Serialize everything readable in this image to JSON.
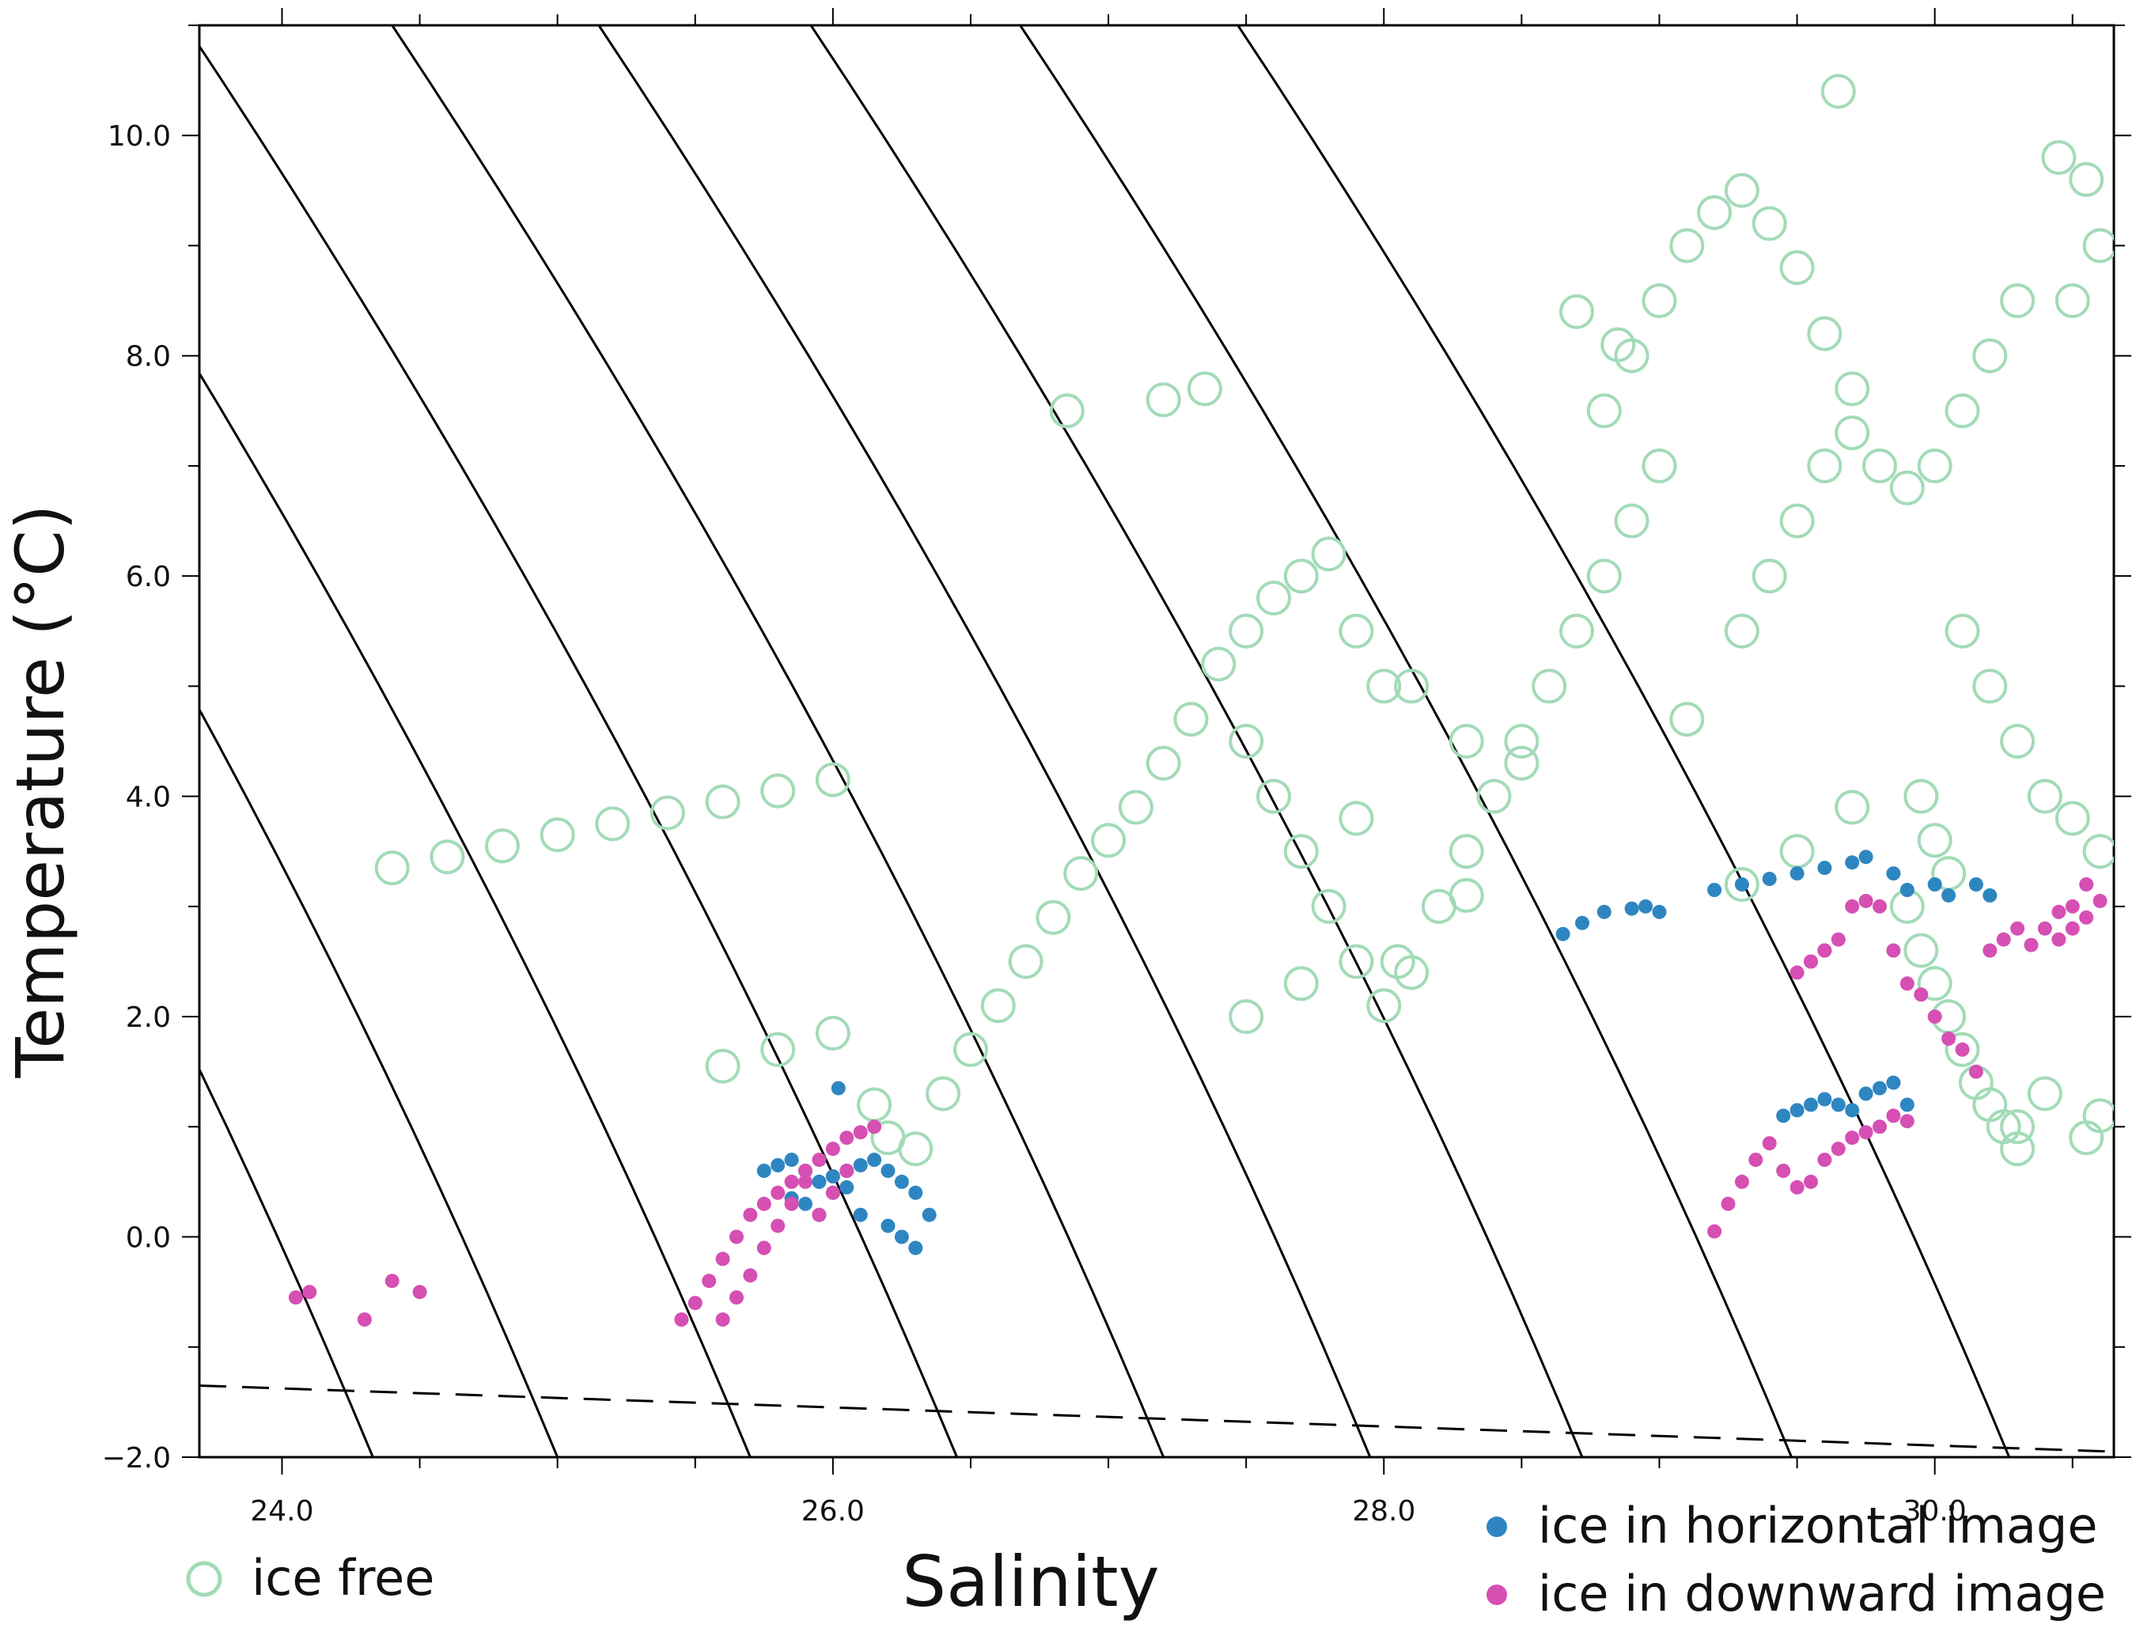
{
  "chart_data": {
    "type": "scatter",
    "title": "",
    "xlabel": "Salinity",
    "ylabel": "Temperature (°C)",
    "xlim": [
      23.7,
      30.65
    ],
    "ylim": [
      -2.0,
      11.0
    ],
    "x_ticks": [
      24.0,
      26.0,
      28.0,
      30.0
    ],
    "y_ticks": [
      -2.0,
      0.0,
      2.0,
      4.0,
      6.0,
      8.0,
      10.0
    ],
    "x_tick_labels": [
      "24.0",
      "26.0",
      "28.0",
      "30.0"
    ],
    "y_tick_labels": [
      "−2.0",
      "0.0",
      "2.0",
      "4.0",
      "6.0",
      "8.0",
      "10.0"
    ],
    "grid": false,
    "legend_position": "bottom",
    "isopycnal_lines": "solid",
    "freezing_line": "dashed",
    "colors": {
      "ice_free": "#a2dbb7",
      "horizontal": "#2e86c1",
      "downward": "#d64fb3",
      "isopycnal": "#000000"
    },
    "series": [
      {
        "name": "ice free",
        "marker": "open-circle",
        "color": "#a2dbb7",
        "x": [
          24.4,
          24.6,
          24.8,
          25.0,
          25.2,
          25.4,
          25.6,
          25.8,
          26.0,
          25.6,
          25.8,
          26.0,
          26.15,
          26.2,
          26.3,
          26.4,
          26.5,
          26.6,
          26.7,
          26.8,
          26.9,
          27.0,
          27.1,
          27.2,
          27.3,
          27.4,
          27.5,
          27.6,
          27.7,
          27.8,
          27.9,
          28.0,
          27.5,
          27.6,
          27.7,
          27.8,
          27.9,
          28.0,
          28.1,
          28.2,
          28.3,
          28.4,
          28.5,
          28.6,
          28.7,
          28.8,
          28.9,
          29.0,
          28.8,
          28.9,
          29.0,
          29.1,
          29.2,
          29.3,
          29.4,
          29.5,
          29.6,
          29.7,
          29.3,
          29.4,
          29.5,
          29.6,
          29.7,
          29.8,
          29.9,
          30.0,
          30.1,
          30.2,
          30.3,
          30.1,
          30.2,
          30.3,
          30.4,
          30.5,
          30.6,
          30.5,
          30.6,
          30.55,
          30.45,
          29.9,
          29.95,
          30.0,
          30.05,
          30.1,
          30.15,
          30.2,
          30.25,
          30.3,
          29.95,
          30.0,
          30.05,
          29.3,
          29.5,
          29.7,
          28.3,
          28.1,
          27.9,
          27.7,
          27.5,
          26.85,
          27.2,
          27.35,
          28.7,
          28.85,
          29.65,
          30.6,
          30.55,
          30.4,
          30.3,
          29.1,
          28.5,
          28.3,
          28.05
        ],
        "y": [
          3.35,
          3.45,
          3.55,
          3.65,
          3.75,
          3.85,
          3.95,
          4.05,
          4.15,
          1.55,
          1.7,
          1.85,
          1.2,
          0.9,
          0.8,
          1.3,
          1.7,
          2.1,
          2.5,
          2.9,
          3.3,
          3.6,
          3.9,
          4.3,
          4.7,
          5.2,
          5.5,
          5.8,
          6.0,
          6.2,
          5.5,
          5.0,
          4.5,
          4.0,
          3.5,
          3.0,
          2.5,
          2.1,
          2.4,
          3.0,
          3.5,
          4.0,
          4.5,
          5.0,
          5.5,
          6.0,
          6.5,
          7.0,
          7.5,
          8.0,
          8.5,
          9.0,
          9.3,
          9.5,
          9.2,
          8.8,
          8.2,
          7.7,
          5.5,
          6.0,
          6.5,
          7.0,
          7.3,
          7.0,
          6.8,
          7.0,
          7.5,
          8.0,
          8.5,
          5.5,
          5.0,
          4.5,
          4.0,
          3.8,
          3.5,
          8.5,
          9.0,
          9.6,
          9.8,
          3.0,
          2.6,
          2.3,
          2.0,
          1.7,
          1.4,
          1.2,
          1.0,
          0.8,
          4.0,
          3.6,
          3.3,
          3.2,
          3.5,
          3.9,
          4.5,
          5.0,
          3.8,
          2.3,
          2.0,
          7.5,
          7.6,
          7.7,
          8.4,
          8.1,
          10.4,
          1.1,
          0.9,
          1.3,
          1.0,
          4.7,
          4.3,
          3.1,
          2.5
        ]
      },
      {
        "name": "ice in horizontal  image",
        "marker": "filled-circle",
        "color": "#2e86c1",
        "x": [
          25.75,
          25.8,
          25.85,
          25.9,
          25.95,
          26.0,
          26.05,
          26.1,
          26.15,
          26.2,
          26.25,
          26.3,
          26.35,
          26.2,
          26.25,
          26.3,
          25.9,
          25.95,
          26.0,
          26.05,
          26.1,
          25.85,
          26.02,
          28.65,
          28.72,
          28.8,
          28.9,
          28.95,
          29.0,
          29.2,
          29.3,
          29.4,
          29.5,
          29.6,
          29.7,
          29.75,
          29.85,
          29.9,
          30.0,
          30.05,
          30.15,
          30.2,
          29.45,
          29.5,
          29.55,
          29.6,
          29.65,
          29.7,
          29.75,
          29.8,
          29.85,
          29.9
        ],
        "y": [
          0.6,
          0.65,
          0.7,
          0.6,
          0.5,
          0.55,
          0.6,
          0.65,
          0.7,
          0.6,
          0.5,
          0.4,
          0.2,
          0.1,
          0.0,
          -0.1,
          0.3,
          0.2,
          0.4,
          0.45,
          0.2,
          0.35,
          1.35,
          2.75,
          2.85,
          2.95,
          2.98,
          3.0,
          2.95,
          3.15,
          3.2,
          3.25,
          3.3,
          3.35,
          3.4,
          3.45,
          3.3,
          3.15,
          3.2,
          3.1,
          3.2,
          3.1,
          1.1,
          1.15,
          1.2,
          1.25,
          1.2,
          1.15,
          1.3,
          1.35,
          1.4,
          1.2
        ]
      },
      {
        "name": "ice in downward image",
        "marker": "filled-circle",
        "color": "#d64fb3",
        "x": [
          24.05,
          24.1,
          24.4,
          24.5,
          24.3,
          25.45,
          25.5,
          25.55,
          25.6,
          25.65,
          25.7,
          25.75,
          25.8,
          25.85,
          25.9,
          25.95,
          26.0,
          26.05,
          26.1,
          26.15,
          25.6,
          25.65,
          25.7,
          25.75,
          25.8,
          25.85,
          25.9,
          25.95,
          26.0,
          26.05,
          29.2,
          29.25,
          29.3,
          29.35,
          29.4,
          29.45,
          29.5,
          29.55,
          29.6,
          29.65,
          29.7,
          29.75,
          29.8,
          29.85,
          29.9,
          29.5,
          29.55,
          29.6,
          29.65,
          29.7,
          29.75,
          29.8,
          29.85,
          29.9,
          29.95,
          30.0,
          30.05,
          30.1,
          30.15,
          30.2,
          30.25,
          30.3,
          30.35,
          30.4,
          30.45,
          30.5,
          30.55,
          30.45,
          30.5,
          30.55,
          30.6,
          29.55,
          29.6
        ],
        "y": [
          -0.55,
          -0.5,
          -0.4,
          -0.5,
          -0.75,
          -0.75,
          -0.6,
          -0.4,
          -0.2,
          0.0,
          0.2,
          0.3,
          0.4,
          0.5,
          0.6,
          0.7,
          0.8,
          0.9,
          0.95,
          1.0,
          -0.75,
          -0.55,
          -0.35,
          -0.1,
          0.1,
          0.3,
          0.5,
          0.2,
          0.4,
          0.6,
          0.05,
          0.3,
          0.5,
          0.7,
          0.85,
          0.6,
          0.45,
          0.5,
          0.7,
          0.8,
          0.9,
          0.95,
          1.0,
          1.1,
          1.05,
          2.4,
          2.5,
          2.6,
          2.7,
          3.0,
          3.05,
          3.0,
          2.6,
          2.3,
          2.2,
          2.0,
          1.8,
          1.7,
          1.5,
          2.6,
          2.7,
          2.8,
          2.65,
          2.8,
          2.95,
          3.0,
          3.2,
          2.7,
          2.8,
          2.9,
          3.05,
          2.5,
          2.6
        ]
      }
    ]
  },
  "legend": {
    "ice_free_label": "ice free",
    "horizontal_label": "ice in horizontal  image",
    "downward_label": "ice in downward image"
  }
}
